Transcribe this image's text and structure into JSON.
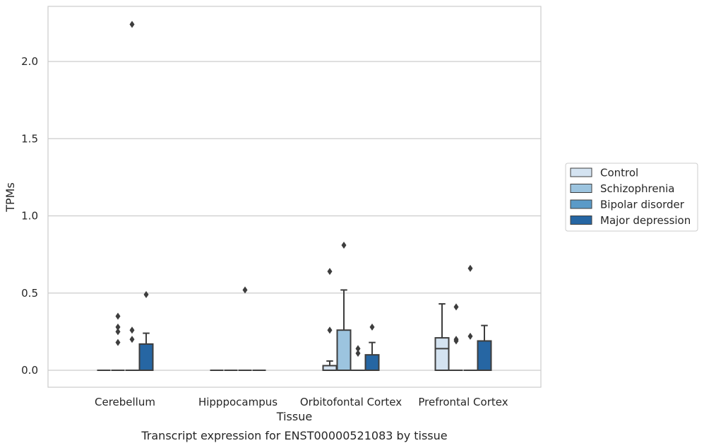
{
  "chart_data": {
    "type": "box",
    "caption": "Transcript expression for ENST00000521083 by tissue",
    "xlabel": "Tissue",
    "ylabel": "TPMs",
    "ylim": [
      -0.11,
      2.36
    ],
    "yticks": [
      "0.0",
      "0.5",
      "1.0",
      "1.5",
      "2.0"
    ],
    "ytick_values": [
      0.0,
      0.5,
      1.0,
      1.5,
      2.0
    ],
    "grid": "horizontal",
    "legend_position": "right",
    "categories": [
      "Cerebellum",
      "Hipppocampus",
      "Orbitofontal Cortex",
      "Prefrontal Cortex"
    ],
    "series": [
      {
        "name": "Control",
        "color": "#d4e3f1",
        "boxes": [
          {
            "q1": 0,
            "median": 0,
            "q3": 0,
            "whislo": 0,
            "whishi": 0,
            "fliers": []
          },
          {
            "q1": 0,
            "median": 0,
            "q3": 0,
            "whislo": 0,
            "whishi": 0,
            "fliers": []
          },
          {
            "q1": 0,
            "median": 0,
            "q3": 0.03,
            "whislo": 0,
            "whishi": 0.06,
            "fliers": [
              0.64,
              0.26
            ]
          },
          {
            "q1": 0,
            "median": 0.14,
            "q3": 0.21,
            "whislo": 0,
            "whishi": 0.43,
            "fliers": []
          }
        ]
      },
      {
        "name": "Schizophrenia",
        "color": "#9cc4df",
        "boxes": [
          {
            "q1": 0,
            "median": 0,
            "q3": 0,
            "whislo": 0,
            "whishi": 0,
            "fliers": [
              0.35,
              0.28,
              0.25,
              0.18
            ]
          },
          {
            "q1": 0,
            "median": 0,
            "q3": 0,
            "whislo": 0,
            "whishi": 0,
            "fliers": []
          },
          {
            "q1": 0,
            "median": 0,
            "q3": 0.26,
            "whislo": 0,
            "whishi": 0.52,
            "fliers": [
              0.81
            ]
          },
          {
            "q1": 0,
            "median": 0,
            "q3": 0,
            "whislo": 0,
            "whishi": 0,
            "fliers": [
              0.41,
              0.2,
              0.19
            ]
          }
        ]
      },
      {
        "name": "Bipolar disorder",
        "color": "#5a9ac8",
        "boxes": [
          {
            "q1": 0,
            "median": 0,
            "q3": 0,
            "whislo": 0,
            "whishi": 0,
            "fliers": [
              2.24,
              0.26,
              0.2
            ]
          },
          {
            "q1": 0,
            "median": 0,
            "q3": 0,
            "whislo": 0,
            "whishi": 0,
            "fliers": [
              0.52
            ]
          },
          {
            "q1": 0,
            "median": 0,
            "q3": 0,
            "whislo": 0,
            "whishi": 0,
            "fliers": [
              0.14,
              0.11
            ]
          },
          {
            "q1": 0,
            "median": 0,
            "q3": 0,
            "whislo": 0,
            "whishi": 0,
            "fliers": [
              0.66,
              0.22
            ]
          }
        ]
      },
      {
        "name": "Major depression",
        "color": "#2666a3",
        "boxes": [
          {
            "q1": 0,
            "median": 0,
            "q3": 0.17,
            "whislo": 0,
            "whishi": 0.24,
            "fliers": [
              0.49
            ]
          },
          {
            "q1": 0,
            "median": 0,
            "q3": 0,
            "whislo": 0,
            "whishi": 0,
            "fliers": []
          },
          {
            "q1": 0,
            "median": 0,
            "q3": 0.1,
            "whislo": 0,
            "whishi": 0.18,
            "fliers": [
              0.28
            ]
          },
          {
            "q1": 0,
            "median": 0,
            "q3": 0.19,
            "whislo": 0,
            "whishi": 0.29,
            "fliers": []
          }
        ]
      }
    ]
  }
}
